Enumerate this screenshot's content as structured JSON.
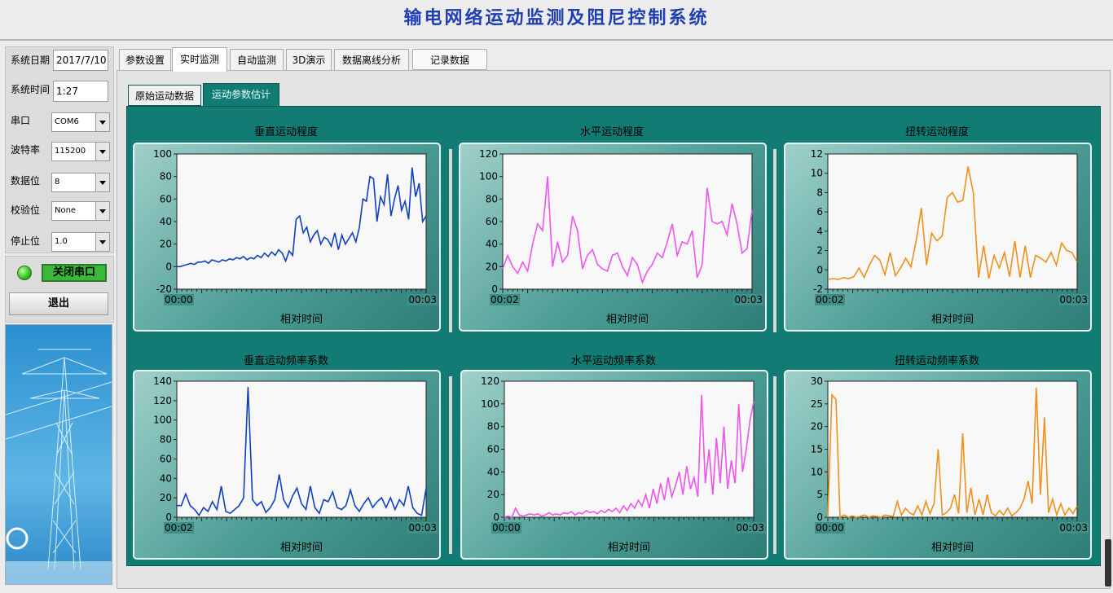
{
  "app": {
    "title": "输电网络运动监测及阻尼控制系统"
  },
  "left": {
    "date_label": "系统日期",
    "date_value": "2017/7/10",
    "time_label": "系统时间",
    "time_value": "1:27",
    "port_label": "串口",
    "port_value": "COM6",
    "baud_label": "波特率",
    "baud_value": "115200",
    "databits_label": "数据位",
    "databits_value": "8",
    "parity_label": "校验位",
    "parity_value": "None",
    "stopbits_label": "停止位",
    "stopbits_value": "1.0",
    "close_port_label": "关闭串口",
    "exit_label": "退出"
  },
  "tabs": [
    {
      "label": "参数设置"
    },
    {
      "label": "实时监测"
    },
    {
      "label": "自动监测"
    },
    {
      "label": "3D演示"
    },
    {
      "label": "数据离线分析"
    },
    {
      "label": "记录数据"
    }
  ],
  "subtabs": [
    {
      "label": "原始运动数据"
    },
    {
      "label": "运动参数估计"
    }
  ],
  "colors": {
    "blue": "#1040c0",
    "magenta": "#ee55ee",
    "orange": "#f0901a",
    "panel": "#127c74"
  },
  "chart_data": [
    {
      "type": "line",
      "title": "垂直运动程度",
      "xlabel": "相对时间",
      "x_ticks": [
        "00:00",
        "00:03"
      ],
      "ylim": [
        -20,
        100
      ],
      "y_ticks": [
        -20,
        0,
        20,
        40,
        60,
        80,
        100
      ],
      "series": [
        {
          "color": "#1040c0",
          "values": [
            0,
            0,
            1,
            2,
            3,
            2,
            4,
            4,
            5,
            3,
            6,
            5,
            4,
            6,
            5,
            7,
            6,
            8,
            7,
            9,
            6,
            8,
            7,
            10,
            8,
            12,
            9,
            13,
            10,
            15,
            12,
            5,
            14,
            10,
            42,
            45,
            30,
            35,
            22,
            28,
            32,
            20,
            26,
            24,
            18,
            30,
            15,
            28,
            20,
            25,
            30,
            22,
            35,
            60,
            58,
            80,
            78,
            40,
            62,
            55,
            82,
            45,
            60,
            72,
            50,
            58,
            42,
            88,
            62,
            74,
            40,
            45
          ]
        }
      ]
    },
    {
      "type": "line",
      "title": "水平运动程度",
      "xlabel": "相对时间",
      "x_ticks": [
        "00:02",
        "00:03"
      ],
      "ylim": [
        0,
        120
      ],
      "y_ticks": [
        0,
        20,
        40,
        60,
        80,
        100,
        120
      ],
      "series": [
        {
          "color": "#ee55ee",
          "values": [
            18,
            30,
            20,
            14,
            24,
            16,
            40,
            58,
            52,
            100,
            20,
            42,
            24,
            30,
            65,
            52,
            18,
            30,
            35,
            22,
            18,
            16,
            30,
            32,
            20,
            12,
            28,
            22,
            6,
            16,
            22,
            32,
            28,
            42,
            58,
            30,
            42,
            40,
            52,
            10,
            22,
            90,
            60,
            58,
            60,
            48,
            76,
            58,
            32,
            36,
            70
          ]
        }
      ]
    },
    {
      "type": "line",
      "title": "扭转运动程度",
      "xlabel": "相对时间",
      "x_ticks": [
        "00:02",
        "00:03"
      ],
      "ylim": [
        -2,
        12
      ],
      "y_ticks": [
        -2,
        0,
        2,
        4,
        6,
        8,
        10,
        12
      ],
      "series": [
        {
          "color": "#f0901a",
          "values": [
            -1,
            -0.9,
            -1,
            -0.8,
            -0.9,
            -0.7,
            0.2,
            -0.8,
            0.5,
            1.5,
            1,
            -0.5,
            1.8,
            -0.6,
            0.2,
            1.2,
            0.3,
            3,
            6.4,
            0.5,
            3.8,
            3,
            3.5,
            7.5,
            8,
            7,
            7.2,
            10.7,
            8,
            -0.8,
            2.5,
            -0.9,
            1.5,
            0.2,
            1.8,
            -0.7,
            3,
            -0.8,
            2.5,
            -0.8,
            1.5,
            1.2,
            0.8,
            1.8,
            0.5,
            2.8,
            2,
            1.8,
            0.8
          ]
        }
      ]
    },
    {
      "type": "line",
      "title": "垂直运动频率系数",
      "xlabel": "相对时间",
      "x_ticks": [
        "00:02",
        "00:03"
      ],
      "ylim": [
        0,
        140
      ],
      "y_ticks": [
        0,
        20,
        40,
        60,
        80,
        100,
        120,
        140
      ],
      "series": [
        {
          "color": "#1040c0",
          "values": [
            12,
            12,
            24,
            12,
            8,
            2,
            10,
            6,
            16,
            8,
            32,
            6,
            4,
            8,
            12,
            20,
            134,
            18,
            12,
            16,
            5,
            10,
            18,
            44,
            18,
            10,
            22,
            30,
            14,
            8,
            32,
            10,
            4,
            18,
            16,
            26,
            10,
            8,
            12,
            28,
            12,
            6,
            14,
            20,
            10,
            16,
            20,
            10,
            20,
            8,
            18,
            12,
            32,
            10,
            4,
            2,
            30
          ]
        }
      ]
    },
    {
      "type": "line",
      "title": "水平运动频率系数",
      "xlabel": "相对时间",
      "x_ticks": [
        "00:00",
        "00:03"
      ],
      "ylim": [
        0,
        120
      ],
      "y_ticks": [
        0,
        20,
        40,
        60,
        80,
        100,
        120
      ],
      "series": [
        {
          "color": "#ee55ee",
          "values": [
            0,
            1,
            0,
            8,
            2,
            1,
            2,
            3,
            2,
            3,
            1,
            2,
            4,
            2,
            3,
            2,
            4,
            3,
            5,
            2,
            4,
            3,
            6,
            4,
            5,
            3,
            6,
            4,
            7,
            5,
            8,
            4,
            10,
            6,
            12,
            8,
            15,
            10,
            20,
            8,
            25,
            12,
            30,
            15,
            35,
            18,
            28,
            40,
            20,
            45,
            25,
            35,
            18,
            108,
            30,
            60,
            20,
            70,
            30,
            80,
            25,
            50,
            30,
            100,
            40,
            60,
            85,
            102
          ]
        }
      ]
    },
    {
      "type": "line",
      "title": "扭转运动频率系数",
      "xlabel": "相对时间",
      "x_ticks": [
        "00:00",
        "00:03"
      ],
      "ylim": [
        0,
        30
      ],
      "y_ticks": [
        0,
        5,
        10,
        15,
        20,
        25,
        30
      ],
      "series": [
        {
          "color": "#f0901a",
          "values": [
            0,
            27,
            26,
            0,
            0.5,
            0,
            0.3,
            0,
            0.2,
            0.5,
            0,
            0.3,
            0.2,
            0,
            0.5,
            0.3,
            0.2,
            3.5,
            0.5,
            2,
            1,
            0.5,
            2.5,
            0.5,
            3.5,
            0.8,
            3,
            15,
            0.5,
            1,
            2,
            5,
            0.8,
            18.5,
            1,
            6.5,
            0.5,
            4,
            0.5,
            5,
            1,
            0.3,
            1.5,
            0.5,
            2,
            0.3,
            1,
            2,
            4,
            8,
            3,
            28.5,
            5,
            22,
            1,
            4,
            0.5,
            3,
            0.5,
            2,
            0.8,
            2.5
          ]
        }
      ]
    }
  ]
}
